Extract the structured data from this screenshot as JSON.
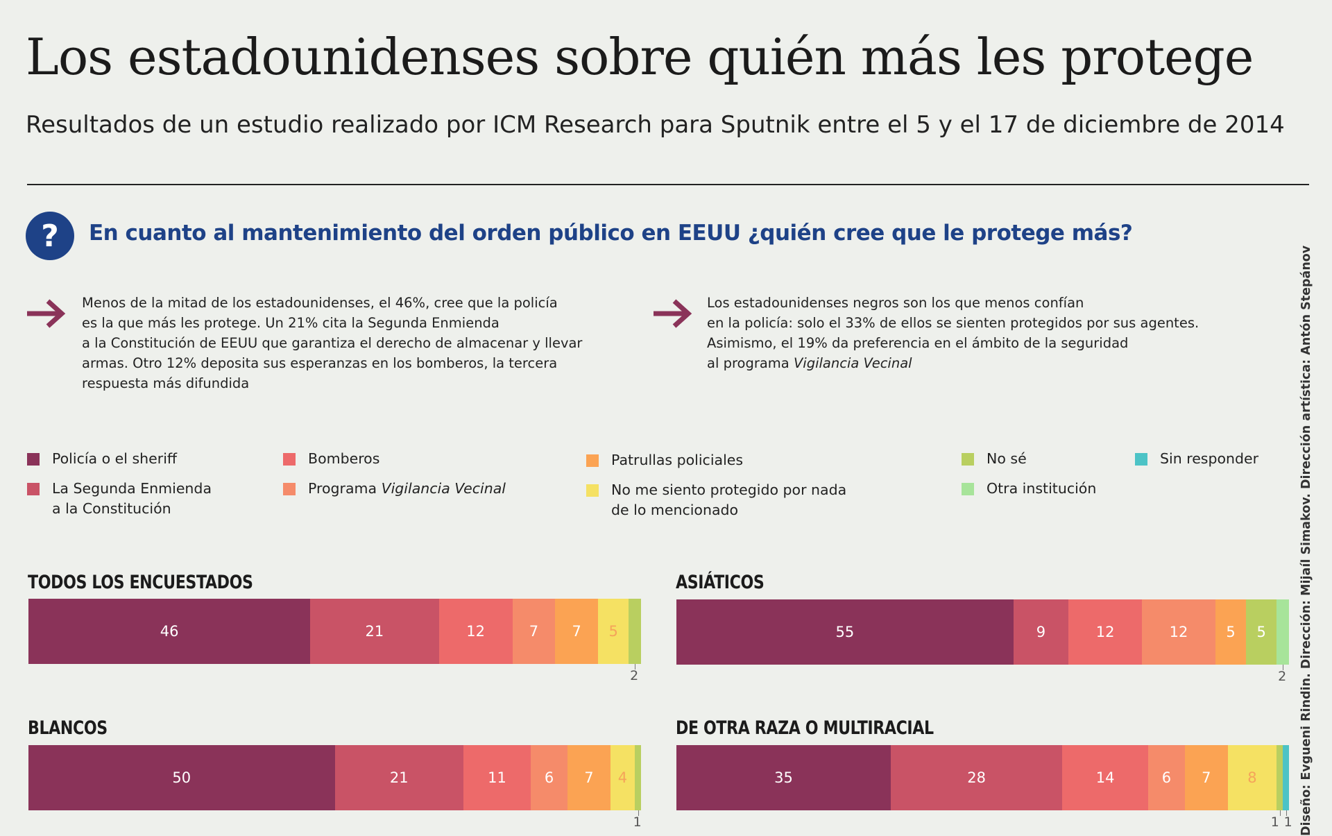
{
  "title": "Los estadounidenses sobre quién más les protege",
  "subtitle": "Resultados de un estudio realizado por ICM Research para Sputnik entre el 5 y el 17 de diciembre de 2014",
  "question_icon": "?",
  "question": "En cuanto al mantenimiento del orden público en EEUU ¿quién cree que le protege más?",
  "notes": {
    "left": [
      "Menos de la mitad de los estadounidenses, el 46%, cree que la policía",
      "es la que más les protege. Un 21% cita la Segunda Enmienda",
      "a la Constitución de EEUU que garantiza el derecho de almacenar y llevar",
      "armas. Otro 12% deposita sus esperanzas en los bomberos, la tercera",
      "respuesta más difundida"
    ],
    "right": [
      "Los estadounidenses negros son los que menos confían",
      "en la policía: solo el 33% de ellos se sienten protegidos por sus agentes.",
      "Asimismo, el 19% da preferencia en el ámbito de la seguridad"
    ],
    "right_last_prefix": "al programa ",
    "right_last_italic": "Vigilancia Vecinal"
  },
  "legend": {
    "police": "Policía o el sheriff",
    "firemen": "Bomberos",
    "patrols": "Patrullas policiales",
    "dontknow": "No sé",
    "noanswer": "Sin responder",
    "amendment_1": "La Segunda Enmienda",
    "amendment_2": "a la Constitución",
    "watch_prefix": "Programa ",
    "watch_italic": "Vigilancia Vecinal",
    "notprotected_1": "No me siento protegido por nada",
    "notprotected_2": "de lo mencionado",
    "other": "Otra institución"
  },
  "colors": {
    "police": "#8a3359",
    "amendment": "#c95366",
    "firemen": "#ed6a6a",
    "watch": "#f58b6a",
    "patrols": "#fba353",
    "notprotected": "#f5e163",
    "dontknow": "#b9cf60",
    "other": "#a7e49a",
    "noanswer": "#4cc3c6",
    "navy": "#1e4287",
    "arrow": "#8a3359"
  },
  "chart_data": [
    {
      "type": "bar",
      "title": "TODOS LOS ENCUESTADOS",
      "categories": [
        "police",
        "amendment",
        "firemen",
        "watch",
        "patrols",
        "notprotected",
        "dontknow"
      ],
      "values": [
        46,
        21,
        12,
        7,
        7,
        5,
        2
      ],
      "labels": [
        "46",
        "21",
        "12",
        "7",
        "7",
        "5",
        ""
      ],
      "outside_label": "2"
    },
    {
      "type": "bar",
      "title": "ASIÁTICOS",
      "categories": [
        "police",
        "amendment",
        "firemen",
        "watch",
        "patrols",
        "dontknow",
        "other"
      ],
      "values": [
        55,
        9,
        12,
        12,
        5,
        5,
        2
      ],
      "labels": [
        "55",
        "9",
        "12",
        "12",
        "5",
        "5",
        ""
      ],
      "outside_label": "2"
    },
    {
      "type": "bar",
      "title": "BLANCOS",
      "categories": [
        "police",
        "amendment",
        "firemen",
        "watch",
        "patrols",
        "notprotected",
        "dontknow"
      ],
      "values": [
        50,
        21,
        11,
        6,
        7,
        4,
        1
      ],
      "labels": [
        "50",
        "21",
        "11",
        "6",
        "7",
        "4",
        ""
      ],
      "outside_label": "1"
    },
    {
      "type": "bar",
      "title": "DE OTRA RAZA O MULTIRACIAL",
      "categories": [
        "police",
        "amendment",
        "firemen",
        "watch",
        "patrols",
        "notprotected",
        "dontknow",
        "noanswer"
      ],
      "values": [
        35,
        28,
        14,
        6,
        7,
        8,
        1,
        1
      ],
      "labels": [
        "35",
        "28",
        "14",
        "6",
        "7",
        "8",
        "",
        ""
      ],
      "outside_labels": [
        "1",
        "1"
      ]
    }
  ],
  "credit": "Diseño: Evgueni Rindin. Dirección: Mijaíl Simakov. Dirección artística: Antón Stepánov"
}
